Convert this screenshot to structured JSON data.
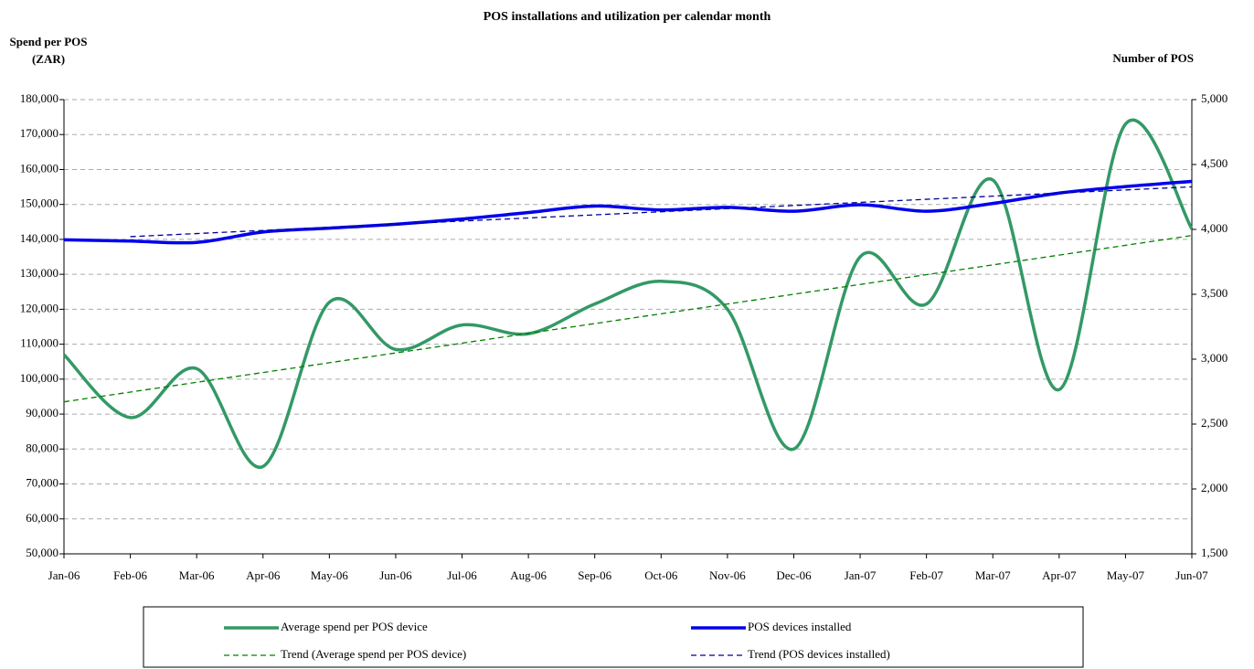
{
  "chart_data": {
    "type": "line",
    "title": "POS installations and utilization per calendar month",
    "y_label_lines": [
      "Spend per POS",
      "(ZAR)"
    ],
    "y2_label": "Number of POS",
    "categories": [
      "Jan-06",
      "Feb-06",
      "Mar-06",
      "Apr-06",
      "May-06",
      "Jun-06",
      "Jul-06",
      "Aug-06",
      "Sep-06",
      "Oct-06",
      "Nov-06",
      "Dec-06",
      "Jan-07",
      "Feb-07",
      "Mar-07",
      "Apr-07",
      "May-07",
      "Jun-07"
    ],
    "series": [
      {
        "name": "Average spend per POS device",
        "color": "#339966",
        "linestyle": "solid",
        "smooth": true,
        "axis": "y",
        "values": [
          107000,
          89000,
          103000,
          75000,
          122000,
          108500,
          115500,
          113000,
          121500,
          128000,
          120000,
          80000,
          135000,
          121500,
          157000,
          97000,
          173000,
          143000
        ]
      },
      {
        "name": "POS devices installed",
        "color": "#0000ee",
        "linestyle": "solid",
        "smooth": true,
        "axis": "y2",
        "values": [
          3920,
          3910,
          3900,
          3980,
          4010,
          4040,
          4080,
          4130,
          4180,
          4150,
          4170,
          4140,
          4190,
          4140,
          4200,
          4280,
          4330,
          4370
        ]
      },
      {
        "name": "Trend (Average spend per POS device)",
        "color": "#008000",
        "linestyle": "dashed",
        "smooth": false,
        "axis": "y",
        "values": [
          93500,
          96300,
          99100,
          101900,
          104700,
          107500,
          110300,
          113100,
          115900,
          118700,
          121500,
          124300,
          127100,
          129900,
          132700,
          135500,
          138300,
          141100
        ]
      },
      {
        "name": "Trend (POS devices installed)",
        "color": "#000099",
        "linestyle": "dashed",
        "smooth": false,
        "axis": "y2",
        "values": [
          null,
          3944,
          3968,
          3992,
          4016,
          4040,
          4064,
          4088,
          4112,
          4136,
          4160,
          4184,
          4208,
          4232,
          4256,
          4280,
          4304,
          4328
        ]
      }
    ],
    "ylim": [
      50000,
      180000
    ],
    "yticks": [
      {
        "value": 50000,
        "label": "50,000"
      },
      {
        "value": 60000,
        "label": "60,000"
      },
      {
        "value": 70000,
        "label": "70,000"
      },
      {
        "value": 80000,
        "label": "80,000"
      },
      {
        "value": 90000,
        "label": "90,000"
      },
      {
        "value": 100000,
        "label": "100,000"
      },
      {
        "value": 110000,
        "label": "110,000"
      },
      {
        "value": 120000,
        "label": "120,000"
      },
      {
        "value": 130000,
        "label": "130,000"
      },
      {
        "value": 140000,
        "label": "140,000"
      },
      {
        "value": 150000,
        "label": "150,000"
      },
      {
        "value": 160000,
        "label": "160,000"
      },
      {
        "value": 170000,
        "label": "170,000"
      },
      {
        "value": 180000,
        "label": "180,000"
      }
    ],
    "y2lim": [
      1500,
      5000
    ],
    "y2ticks": [
      {
        "value": 1500,
        "label": "1,500"
      },
      {
        "value": 2000,
        "label": "2,000"
      },
      {
        "value": 2500,
        "label": "2,500"
      },
      {
        "value": 3000,
        "label": "3,000"
      },
      {
        "value": 3500,
        "label": "3,500"
      },
      {
        "value": 4000,
        "label": "4,000"
      },
      {
        "value": 4500,
        "label": "4,500"
      },
      {
        "value": 5000,
        "label": "5,000"
      }
    ],
    "grid": true,
    "legend": "bottom"
  }
}
